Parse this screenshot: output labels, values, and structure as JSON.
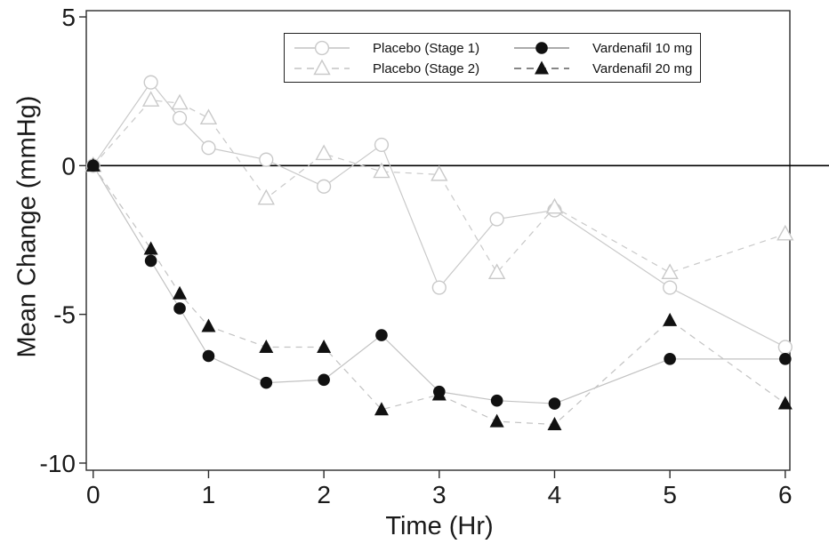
{
  "chart_data": {
    "type": "line",
    "title": "",
    "xlabel": "Time (Hr)",
    "ylabel": "Mean Change (mmHg)",
    "xlim": [
      -0.06,
      6.04
    ],
    "ylim": [
      -10.24,
      5.21
    ],
    "xticks": [
      0,
      1,
      2,
      3,
      4,
      5,
      6
    ],
    "yticks": [
      5,
      0,
      -5,
      -10
    ],
    "grid": false,
    "zero_reference_line": 0,
    "legend_position": "top-center-inside",
    "axis_color": "#2b2b2b",
    "zero_line_color": "#000000",
    "text_color": "#1a1a1a",
    "x": [
      0,
      0.5,
      0.75,
      1,
      1.5,
      2,
      2.5,
      3,
      3.5,
      4,
      5,
      6
    ],
    "series": [
      {
        "name": "Placebo (Stage 1)",
        "marker": "open-circle",
        "line_style": "solid",
        "line_color": "#c9c9c9",
        "marker_color": "#c9c9c9",
        "marker_fill": "#ffffff",
        "legend_line_color": "#c4c4c4",
        "values": [
          0,
          2.8,
          1.6,
          0.6,
          0.2,
          -0.7,
          0.7,
          -4.1,
          -1.8,
          -1.5,
          -4.1,
          -6.1
        ]
      },
      {
        "name": "Placebo (Stage 2)",
        "marker": "open-triangle",
        "line_style": "dashed",
        "line_color": "#c9c9c9",
        "marker_color": "#c9c9c9",
        "marker_fill": "#ffffff",
        "legend_line_color": "#c4c4c4",
        "values": [
          0,
          2.2,
          2.1,
          1.6,
          -1.1,
          0.4,
          -0.2,
          -0.3,
          -3.6,
          -1.4,
          -3.6,
          -2.3
        ]
      },
      {
        "name": "Vardenafil 10 mg",
        "marker": "filled-circle",
        "line_style": "solid",
        "line_color": "#c2c2c2",
        "marker_color": "#111111",
        "marker_fill": "#111111",
        "legend_line_color": "#8f8f8f",
        "values": [
          0,
          -3.2,
          -4.8,
          -6.4,
          -7.3,
          -7.2,
          -5.7,
          -7.6,
          -7.9,
          -8.0,
          -6.5,
          -6.5
        ]
      },
      {
        "name": "Vardenafil 20 mg",
        "marker": "filled-triangle",
        "line_style": "dashed",
        "line_color": "#c2c2c2",
        "marker_color": "#111111",
        "marker_fill": "#111111",
        "legend_line_color": "#5f5f5f",
        "values": [
          0,
          -2.8,
          -4.3,
          -5.4,
          -6.1,
          -6.1,
          -8.2,
          -7.7,
          -8.6,
          -8.7,
          -5.2,
          -8.0
        ]
      }
    ]
  }
}
